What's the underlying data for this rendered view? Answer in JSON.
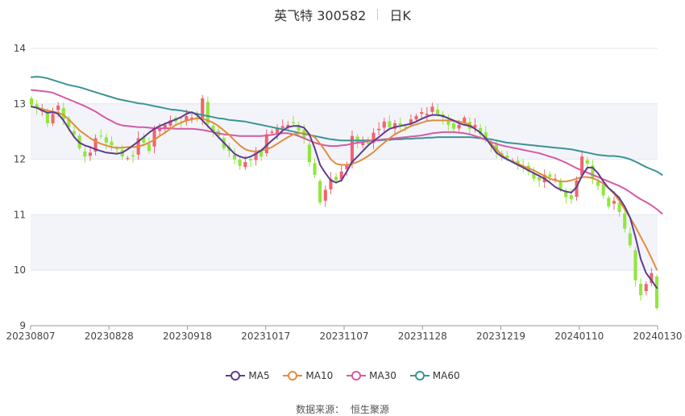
{
  "title": {
    "name": "英飞特 300582",
    "period": "日K"
  },
  "source": {
    "label": "数据来源：",
    "value": "恒生聚源"
  },
  "colors": {
    "up": "#f0646e",
    "down": "#91e63c",
    "MA5": "#5b3d8f",
    "MA10": "#e08d3c",
    "MA30": "#d65aa4",
    "MA60": "#3a9494",
    "band": "#f3f4fa",
    "grid": "#e4e6ee"
  },
  "chart_data": {
    "type": "candlestick",
    "xlabels": [
      "20230807",
      "20230828",
      "20230918",
      "20231017",
      "20231107",
      "20231128",
      "20231219",
      "20240110",
      "20240130"
    ],
    "ylim": [
      9,
      14
    ],
    "yticks": [
      9,
      10,
      11,
      12,
      13,
      14
    ],
    "grid": true,
    "legend_position": "bottom",
    "legend": [
      "MA5",
      "MA10",
      "MA30",
      "MA60"
    ],
    "trading_days": 118,
    "closes": [
      12.98,
      12.92,
      12.88,
      12.65,
      12.82,
      12.97,
      12.72,
      12.58,
      12.45,
      12.2,
      12.05,
      12.12,
      12.38,
      12.42,
      12.3,
      12.25,
      12.18,
      12.05,
      12.02,
      12.05,
      12.38,
      12.3,
      12.15,
      12.55,
      12.55,
      12.62,
      12.7,
      12.68,
      12.65,
      12.78,
      12.75,
      12.72,
      13.1,
      12.65,
      12.48,
      12.42,
      12.2,
      12.15,
      12.0,
      11.88,
      11.95,
      11.98,
      12.12,
      12.05,
      12.45,
      12.5,
      12.55,
      12.6,
      12.62,
      12.65,
      12.52,
      12.38,
      11.95,
      11.72,
      11.22,
      11.45,
      11.65,
      11.62,
      11.78,
      11.9,
      12.42,
      12.28,
      12.32,
      12.28,
      12.48,
      12.55,
      12.68,
      12.58,
      12.65,
      12.62,
      12.58,
      12.72,
      12.78,
      12.85,
      12.82,
      12.95,
      12.82,
      12.75,
      12.62,
      12.55,
      12.62,
      12.75,
      12.55,
      12.62,
      12.45,
      12.35,
      12.25,
      12.12,
      12.05,
      12.02,
      11.98,
      11.92,
      11.85,
      11.78,
      11.65,
      11.62,
      11.72,
      11.68,
      11.65,
      11.45,
      11.32,
      11.28,
      11.62,
      12.05,
      11.92,
      11.65,
      11.52,
      11.35,
      11.15,
      11.25,
      11.05,
      10.75,
      10.45,
      9.82,
      9.55,
      9.75,
      9.95,
      9.32
    ],
    "ma5": [
      12.95,
      12.93,
      12.88,
      12.84,
      12.85,
      12.82,
      12.7,
      12.55,
      12.4,
      12.3,
      12.25,
      12.22,
      12.18,
      12.15,
      12.12,
      12.11,
      12.1,
      12.12,
      12.18,
      12.25,
      12.32,
      12.4,
      12.48,
      12.55,
      12.6,
      12.64,
      12.68,
      12.72,
      12.76,
      12.82,
      12.85,
      12.8,
      12.7,
      12.6,
      12.5,
      12.4,
      12.3,
      12.2,
      12.1,
      12.05,
      12.02,
      12.05,
      12.1,
      12.16,
      12.25,
      12.34,
      12.42,
      12.52,
      12.58,
      12.6,
      12.6,
      12.57,
      12.45,
      12.2,
      11.9,
      11.75,
      11.62,
      11.58,
      11.62,
      11.78,
      11.95,
      12.05,
      12.15,
      12.25,
      12.33,
      12.4,
      12.48,
      12.55,
      12.58,
      12.6,
      12.62,
      12.64,
      12.68,
      12.73,
      12.77,
      12.8,
      12.8,
      12.78,
      12.74,
      12.7,
      12.65,
      12.62,
      12.6,
      12.55,
      12.48,
      12.38,
      12.25,
      12.12,
      12.05,
      12.0,
      11.95,
      11.9,
      11.85,
      11.8,
      11.75,
      11.7,
      11.65,
      11.58,
      11.5,
      11.45,
      11.42,
      11.4,
      11.5,
      11.7,
      11.85,
      11.85,
      11.75,
      11.6,
      11.48,
      11.4,
      11.3,
      11.15,
      10.95,
      10.6,
      10.2,
      9.95,
      9.82,
      9.68
    ],
    "ma10": [
      12.95,
      12.93,
      12.91,
      12.88,
      12.86,
      12.84,
      12.8,
      12.72,
      12.62,
      12.52,
      12.45,
      12.38,
      12.32,
      12.28,
      12.25,
      12.22,
      12.21,
      12.21,
      12.22,
      12.22,
      12.23,
      12.26,
      12.3,
      12.35,
      12.42,
      12.48,
      12.55,
      12.62,
      12.66,
      12.7,
      12.72,
      12.74,
      12.73,
      12.7,
      12.66,
      12.6,
      12.52,
      12.44,
      12.34,
      12.25,
      12.18,
      12.15,
      12.14,
      12.16,
      12.18,
      12.22,
      12.28,
      12.34,
      12.4,
      12.45,
      12.47,
      12.47,
      12.45,
      12.4,
      12.28,
      12.15,
      12.0,
      11.92,
      11.9,
      11.9,
      11.92,
      11.95,
      12.0,
      12.06,
      12.13,
      12.22,
      12.3,
      12.38,
      12.45,
      12.5,
      12.55,
      12.6,
      12.63,
      12.66,
      12.69,
      12.7,
      12.7,
      12.7,
      12.7,
      12.69,
      12.68,
      12.66,
      12.62,
      12.55,
      12.48,
      12.38,
      12.28,
      12.18,
      12.08,
      12.0,
      11.96,
      11.92,
      11.88,
      11.84,
      11.8,
      11.75,
      11.7,
      11.65,
      11.62,
      11.6,
      11.6,
      11.62,
      11.65,
      11.68,
      11.68,
      11.66,
      11.62,
      11.56,
      11.48,
      11.38,
      11.25,
      11.1,
      10.95,
      10.78,
      10.6,
      10.42,
      10.22,
      10.01
    ],
    "ma30": [
      13.25,
      13.24,
      13.23,
      13.22,
      13.2,
      13.16,
      13.12,
      13.08,
      13.04,
      13.0,
      12.96,
      12.91,
      12.86,
      12.8,
      12.74,
      12.69,
      12.64,
      12.61,
      12.6,
      12.59,
      12.58,
      12.58,
      12.57,
      12.56,
      12.56,
      12.56,
      12.56,
      12.55,
      12.55,
      12.55,
      12.55,
      12.54,
      12.53,
      12.51,
      12.49,
      12.47,
      12.45,
      12.44,
      12.43,
      12.42,
      12.42,
      12.42,
      12.42,
      12.42,
      12.43,
      12.44,
      12.46,
      12.47,
      12.47,
      12.45,
      12.42,
      12.38,
      12.34,
      12.3,
      12.27,
      12.25,
      12.24,
      12.24,
      12.25,
      12.26,
      12.28,
      12.3,
      12.31,
      12.33,
      12.34,
      12.35,
      12.36,
      12.37,
      12.38,
      12.39,
      12.4,
      12.41,
      12.42,
      12.43,
      12.45,
      12.47,
      12.48,
      12.49,
      12.49,
      12.49,
      12.48,
      12.47,
      12.45,
      12.42,
      12.39,
      12.35,
      12.31,
      12.28,
      12.25,
      12.23,
      12.21,
      12.19,
      12.17,
      12.15,
      12.13,
      12.11,
      12.08,
      12.05,
      12.02,
      11.98,
      11.94,
      11.89,
      11.84,
      11.8,
      11.76,
      11.72,
      11.68,
      11.64,
      11.6,
      11.56,
      11.52,
      11.47,
      11.41,
      11.34,
      11.28,
      11.23,
      11.17,
      11.1,
      11.02
    ],
    "ma60": [
      13.48,
      13.49,
      13.48,
      13.46,
      13.43,
      13.4,
      13.37,
      13.34,
      13.32,
      13.3,
      13.27,
      13.24,
      13.21,
      13.18,
      13.15,
      13.12,
      13.09,
      13.07,
      13.05,
      13.03,
      13.01,
      13.0,
      12.98,
      12.96,
      12.94,
      12.92,
      12.9,
      12.89,
      12.88,
      12.86,
      12.84,
      12.82,
      12.8,
      12.78,
      12.76,
      12.74,
      12.73,
      12.71,
      12.7,
      12.69,
      12.68,
      12.66,
      12.64,
      12.62,
      12.6,
      12.58,
      12.56,
      12.54,
      12.52,
      12.5,
      12.48,
      12.46,
      12.44,
      12.42,
      12.4,
      12.38,
      12.36,
      12.35,
      12.34,
      12.34,
      12.34,
      12.34,
      12.34,
      12.34,
      12.34,
      12.34,
      12.35,
      12.35,
      12.36,
      12.36,
      12.37,
      12.37,
      12.38,
      12.38,
      12.39,
      12.39,
      12.4,
      12.4,
      12.4,
      12.4,
      12.4,
      12.4,
      12.4,
      12.39,
      12.38,
      12.37,
      12.36,
      12.34,
      12.32,
      12.3,
      12.29,
      12.28,
      12.27,
      12.26,
      12.25,
      12.24,
      12.23,
      12.22,
      12.21,
      12.2,
      12.19,
      12.18,
      12.16,
      12.14,
      12.12,
      12.1,
      12.08,
      12.07,
      12.06,
      12.06,
      12.05,
      12.03,
      12.0,
      11.96,
      11.91,
      11.86,
      11.82,
      11.78,
      11.72
    ]
  }
}
